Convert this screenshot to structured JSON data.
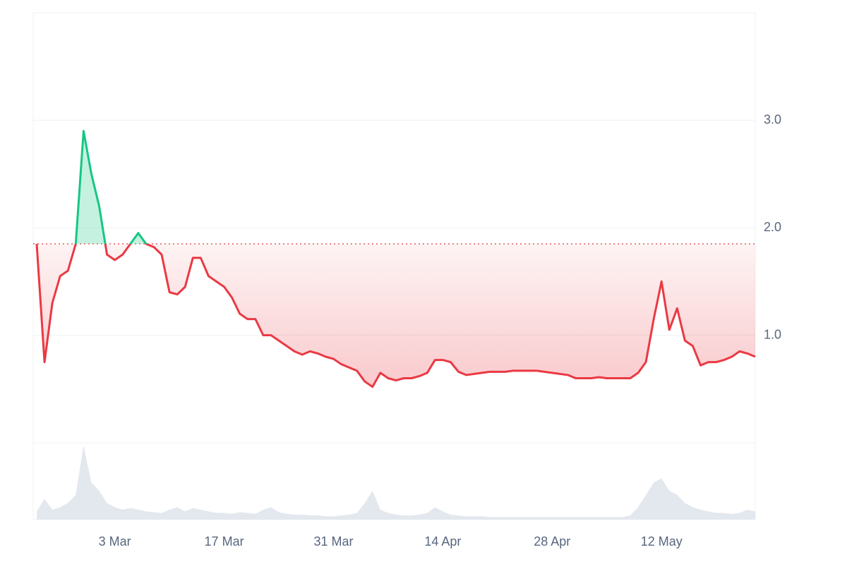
{
  "chart_data": {
    "type": "line",
    "categories": [
      "21 Feb",
      "22 Feb",
      "23 Feb",
      "24 Feb",
      "25 Feb",
      "26 Feb",
      "27 Feb",
      "28 Feb",
      "1 Mar",
      "2 Mar",
      "3 Mar",
      "4 Mar",
      "5 Mar",
      "6 Mar",
      "7 Mar",
      "8 Mar",
      "9 Mar",
      "10 Mar",
      "11 Mar",
      "12 Mar",
      "13 Mar",
      "14 Mar",
      "15 Mar",
      "16 Mar",
      "17 Mar",
      "18 Mar",
      "19 Mar",
      "20 Mar",
      "21 Mar",
      "22 Mar",
      "23 Mar",
      "24 Mar",
      "25 Mar",
      "26 Mar",
      "27 Mar",
      "28 Mar",
      "29 Mar",
      "30 Mar",
      "31 Mar",
      "1 Apr",
      "2 Apr",
      "3 Apr",
      "4 Apr",
      "5 Apr",
      "6 Apr",
      "7 Apr",
      "8 Apr",
      "9 Apr",
      "10 Apr",
      "11 Apr",
      "12 Apr",
      "13 Apr",
      "14 Apr",
      "15 Apr",
      "16 Apr",
      "17 Apr",
      "18 Apr",
      "19 Apr",
      "20 Apr",
      "21 Apr",
      "22 Apr",
      "23 Apr",
      "24 Apr",
      "25 Apr",
      "26 Apr",
      "27 Apr",
      "28 Apr",
      "29 Apr",
      "30 Apr",
      "1 May",
      "2 May",
      "3 May",
      "4 May",
      "5 May",
      "6 May",
      "7 May",
      "8 May",
      "9 May",
      "10 May",
      "11 May",
      "12 May",
      "13 May",
      "14 May",
      "15 May",
      "16 May",
      "17 May",
      "18 May",
      "19 May",
      "20 May",
      "21 May",
      "22 May",
      "23 May",
      "24 May"
    ],
    "values": [
      1.85,
      0.75,
      1.3,
      1.55,
      1.6,
      1.85,
      2.9,
      2.5,
      2.2,
      1.75,
      1.7,
      1.75,
      1.85,
      1.95,
      1.85,
      1.82,
      1.75,
      1.4,
      1.38,
      1.45,
      1.72,
      1.72,
      1.55,
      1.5,
      1.45,
      1.35,
      1.2,
      1.15,
      1.15,
      1.0,
      1.0,
      0.95,
      0.9,
      0.85,
      0.82,
      0.85,
      0.83,
      0.8,
      0.78,
      0.73,
      0.7,
      0.67,
      0.57,
      0.52,
      0.65,
      0.6,
      0.58,
      0.6,
      0.6,
      0.62,
      0.65,
      0.77,
      0.77,
      0.75,
      0.66,
      0.63,
      0.64,
      0.65,
      0.66,
      0.66,
      0.66,
      0.67,
      0.67,
      0.67,
      0.67,
      0.66,
      0.65,
      0.64,
      0.63,
      0.6,
      0.6,
      0.6,
      0.61,
      0.6,
      0.6,
      0.6,
      0.6,
      0.65,
      0.75,
      1.15,
      1.5,
      1.05,
      1.25,
      0.95,
      0.9,
      0.72,
      0.75,
      0.75,
      0.77,
      0.8,
      0.85,
      0.83,
      0.8
    ],
    "baseline": 1.85,
    "up_color": "#16c784",
    "down_color": "#ea3943",
    "volume": {
      "color": "#e3e7ee",
      "values": [
        10,
        25,
        12,
        15,
        20,
        30,
        90,
        45,
        35,
        20,
        15,
        12,
        14,
        12,
        10,
        9,
        8,
        12,
        15,
        10,
        14,
        12,
        10,
        8,
        8,
        7,
        9,
        8,
        7,
        12,
        15,
        9,
        7,
        6,
        6,
        5,
        5,
        4,
        4,
        5,
        6,
        8,
        20,
        35,
        12,
        8,
        6,
        5,
        5,
        6,
        8,
        15,
        10,
        6,
        5,
        4,
        4,
        4,
        3,
        3,
        3,
        3,
        3,
        3,
        3,
        3,
        3,
        3,
        3,
        3,
        3,
        3,
        3,
        3,
        3,
        3,
        5,
        15,
        30,
        45,
        50,
        35,
        30,
        20,
        15,
        12,
        10,
        8,
        8,
        7,
        8,
        12,
        10
      ]
    },
    "xticks": [
      "3 Mar",
      "17 Mar",
      "31 Mar",
      "14 Apr",
      "28 Apr",
      "12 May"
    ],
    "ylim": [
      0,
      4
    ],
    "yticks": [
      {
        "value": 1,
        "label": "1.0"
      },
      {
        "value": 2,
        "label": "2.0"
      },
      {
        "value": 3,
        "label": "3.0"
      }
    ],
    "grid": true
  }
}
